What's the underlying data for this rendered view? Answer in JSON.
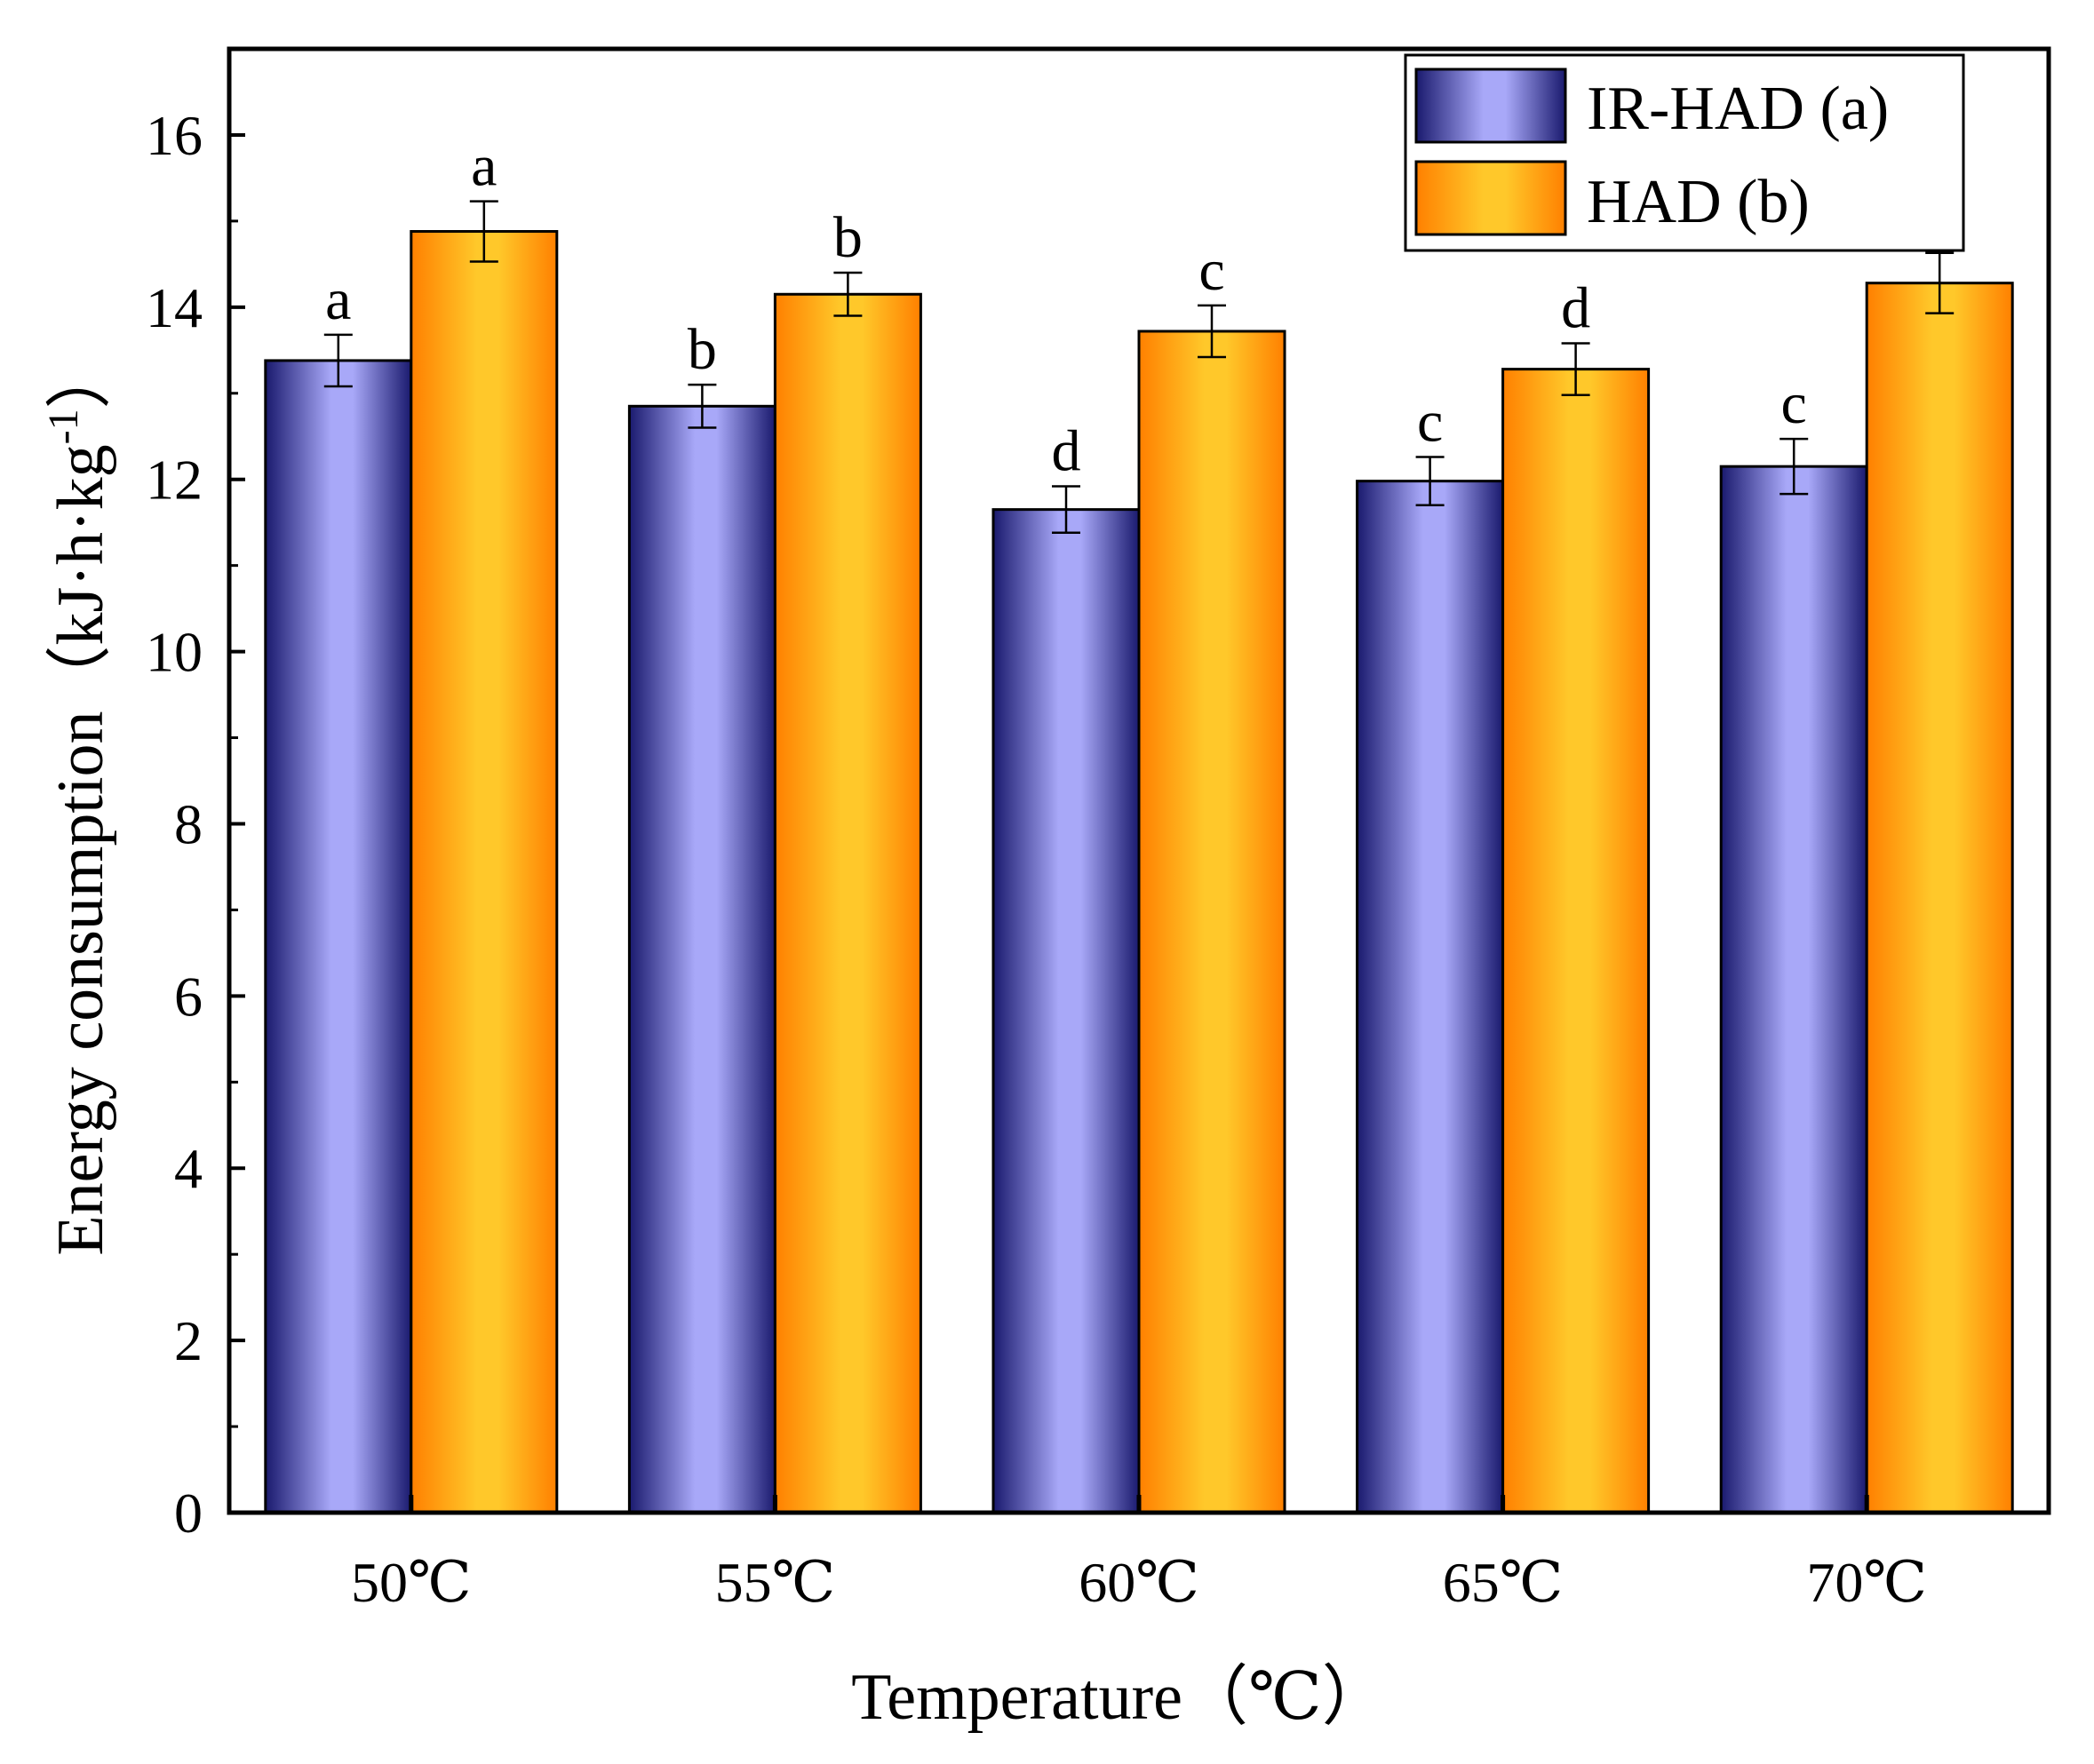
{
  "chart_data": {
    "type": "bar",
    "title": "",
    "xlabel": "Temperature（℃）",
    "ylabel": "Energy consumption（kJ·h·kg",
    "ylabel_superscript": "-1",
    "ylabel_close": "）",
    "ylim": [
      0,
      17
    ],
    "yticks": [
      0,
      2,
      4,
      6,
      8,
      10,
      12,
      14,
      16
    ],
    "grid": false,
    "legend_position": "top-right",
    "categories": [
      "50℃",
      "55℃",
      "60℃",
      "65℃",
      "70℃"
    ],
    "series": [
      {
        "name": "IR-HAD (a)",
        "colors": {
          "edge": "#1a1a6e",
          "mid": "#a8a8f8"
        },
        "values": [
          13.38,
          12.85,
          11.65,
          11.98,
          12.15
        ],
        "errors": [
          0.3,
          0.25,
          0.27,
          0.28,
          0.32
        ],
        "labels": [
          "a",
          "b",
          "d",
          "c",
          "c"
        ]
      },
      {
        "name": "HAD (b)",
        "colors": {
          "edge": "#ff8000",
          "mid": "#ffc82a"
        },
        "values": [
          14.88,
          14.15,
          13.72,
          13.28,
          14.28
        ],
        "errors": [
          0.35,
          0.25,
          0.3,
          0.3,
          0.35
        ],
        "labels": [
          "a",
          "b",
          "c",
          "d",
          ""
        ]
      }
    ]
  }
}
